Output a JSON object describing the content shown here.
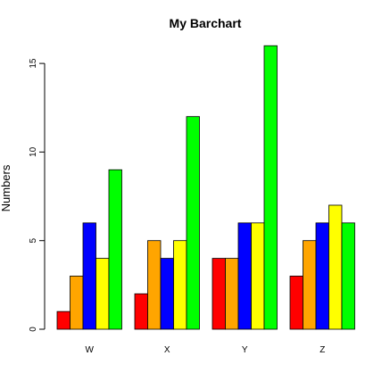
{
  "chart_data": {
    "type": "bar",
    "title": "My Barchart",
    "xlabel": "",
    "ylabel": "Numbers",
    "categories": [
      "W",
      "X",
      "Y",
      "Z"
    ],
    "series": [
      {
        "values": [
          1,
          2,
          4,
          3
        ],
        "color": "#ff0000"
      },
      {
        "values": [
          3,
          5,
          4,
          5
        ],
        "color": "#ffa500"
      },
      {
        "values": [
          6,
          4,
          6,
          6
        ],
        "color": "#0000ff"
      },
      {
        "values": [
          4,
          5,
          6,
          7
        ],
        "color": "#ffff00"
      },
      {
        "values": [
          9,
          12,
          16,
          6
        ],
        "color": "#00ff00"
      }
    ],
    "yticks": [
      0,
      5,
      10,
      15
    ],
    "ylim": [
      0,
      16
    ],
    "grid": false,
    "legend": "none"
  }
}
